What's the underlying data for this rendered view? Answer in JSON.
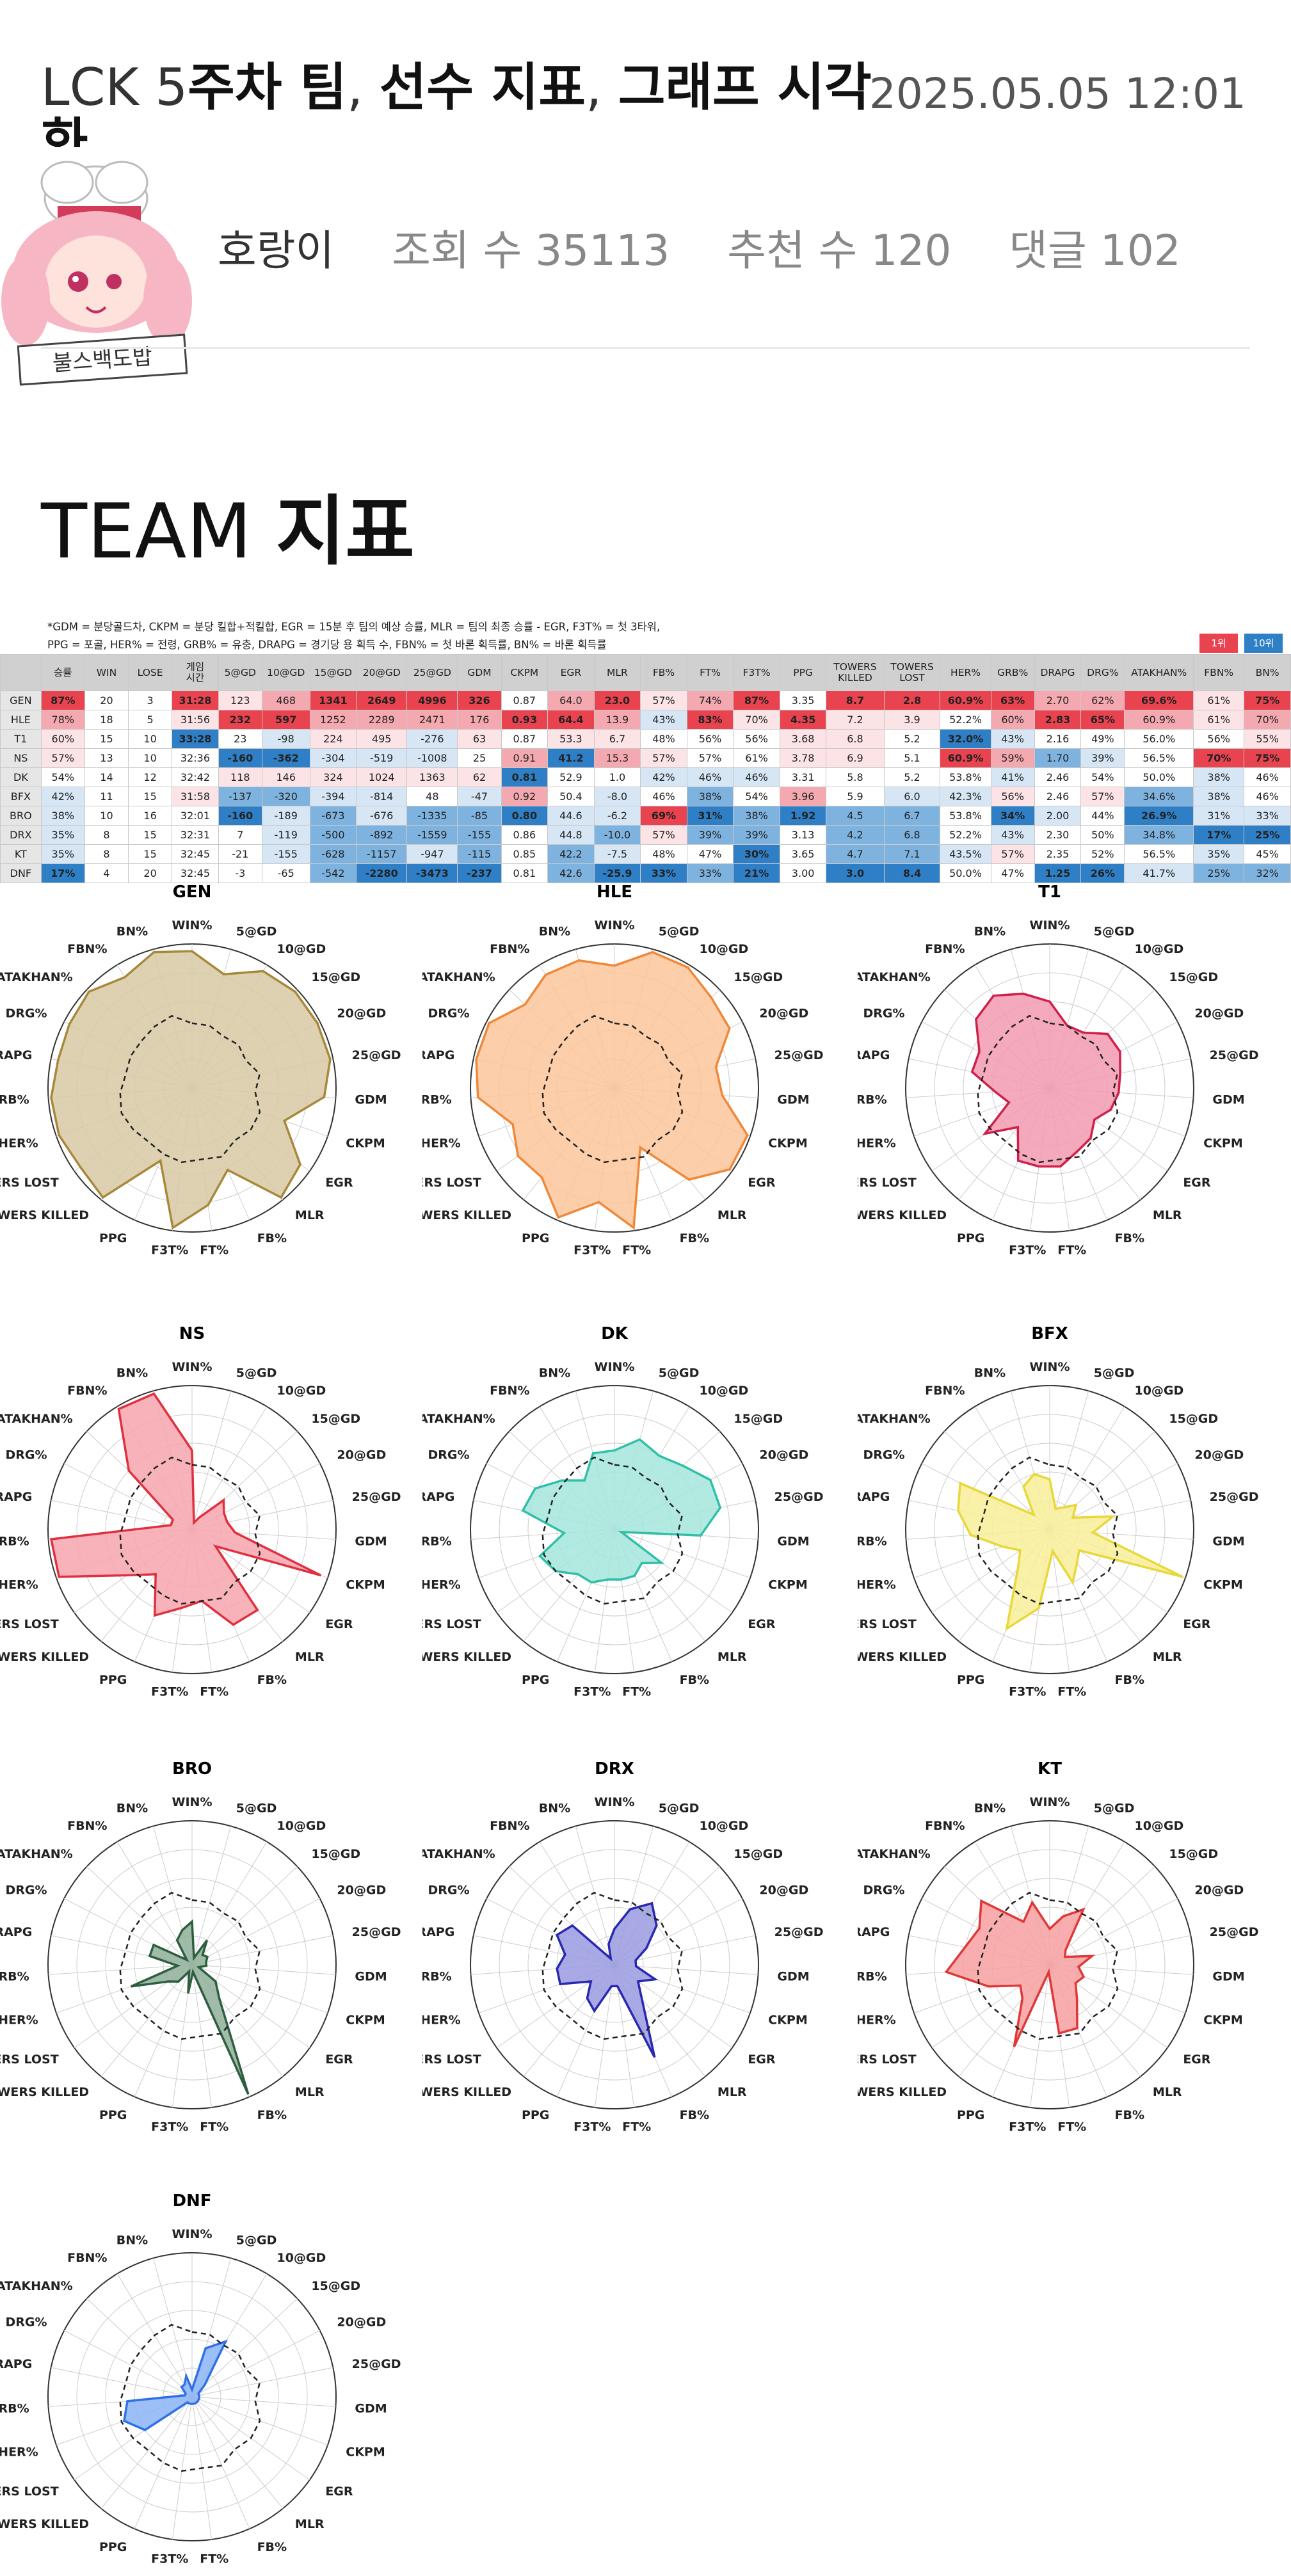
{
  "header": {
    "title_prefix": "LCK 5",
    "title_bold_1": "주차 팀",
    "title_sep_1": ", ",
    "title_bold_2": "선수 지표",
    "title_sep_2": ", ",
    "title_bold_3": "그래프 시각",
    "title_line2": "화",
    "date": "2025.05.05 12:01",
    "author": "호랑이",
    "views": "조회 수 35113",
    "recommends": "추천 수 120",
    "comments": "댓글 102",
    "avatar_caption": "불스백도밥"
  },
  "section": {
    "title_light": "TEAM ",
    "title_bold": "지표"
  },
  "notes": {
    "line1": "*GDM = 분당골드차, CKPM = 분당 킬합+적킬합, EGR = 15분 후 팀의 예상 승률, MLR = 팀의 최종 승률 - EGR, F3T% = 첫 3타워,",
    "line2": "PPG = 포골, HER% = 전령, GRB% = 유충, DRAPG = 경기당 용 획득 수, FBN% = 첫 바론 획득률, BN% = 바론 획득률",
    "rank1": "1위",
    "rank10": "10위"
  },
  "colors": {
    "top": "#e8434f",
    "high": "#f4a8b0",
    "mid": "#fbe3e6",
    "neutral": "#ffffff",
    "lowmid": "#d6e6f5",
    "low": "#7fb3df",
    "bottom": "#2f7fc7"
  },
  "table": {
    "columns": [
      "",
      "승률",
      "WIN",
      "LOSE",
      "게임\n시간",
      "5@GD",
      "10@GD",
      "15@GD",
      "20@GD",
      "25@GD",
      "GDM",
      "CKPM",
      "EGR",
      "MLR",
      "FB%",
      "FT%",
      "F3T%",
      "PPG",
      "TOWERS\nKILLED",
      "TOWERS\nLOST",
      "HER%",
      "GRB%",
      "DRAPG",
      "DRG%",
      "ATAKHAN%",
      "FBN%",
      "BN%"
    ],
    "rows": [
      {
        "team": "GEN",
        "cells": [
          "87%",
          "20",
          "3",
          "31:28",
          "123",
          "468",
          "1341",
          "2649",
          "4996",
          "326",
          "0.87",
          "64.0",
          "23.0",
          "57%",
          "74%",
          "87%",
          "3.35",
          "8.7",
          "2.8",
          "60.9%",
          "63%",
          "2.70",
          "62%",
          "69.6%",
          "61%",
          "75%"
        ],
        "shade": [
          "top",
          "",
          "",
          "top",
          "mid",
          "high",
          "top",
          "top",
          "top",
          "top",
          "",
          "high",
          "top",
          "mid",
          "high",
          "top",
          "",
          "top",
          "top",
          "top",
          "top",
          "high",
          "high",
          "top",
          "mid",
          "top"
        ]
      },
      {
        "team": "HLE",
        "cells": [
          "78%",
          "18",
          "5",
          "31:56",
          "232",
          "597",
          "1252",
          "2289",
          "2471",
          "176",
          "0.93",
          "64.4",
          "13.9",
          "43%",
          "83%",
          "70%",
          "4.35",
          "7.2",
          "3.9",
          "52.2%",
          "60%",
          "2.83",
          "65%",
          "60.9%",
          "61%",
          "70%"
        ],
        "shade": [
          "high",
          "",
          "",
          "mid",
          "top",
          "top",
          "high",
          "high",
          "high",
          "high",
          "top",
          "top",
          "high",
          "lowmid",
          "top",
          "mid",
          "top",
          "mid",
          "mid",
          "",
          "high",
          "top",
          "top",
          "high",
          "mid",
          "high"
        ]
      },
      {
        "team": "T1",
        "cells": [
          "60%",
          "15",
          "10",
          "33:28",
          "23",
          "-98",
          "224",
          "495",
          "-276",
          "63",
          "0.87",
          "53.3",
          "6.7",
          "48%",
          "56%",
          "56%",
          "3.68",
          "6.8",
          "5.2",
          "32.0%",
          "43%",
          "2.16",
          "49%",
          "56.0%",
          "56%",
          "55%"
        ],
        "shade": [
          "mid",
          "",
          "",
          "bottom",
          "",
          "lowmid",
          "mid",
          "mid",
          "lowmid",
          "mid",
          "",
          "mid",
          "mid",
          "",
          "",
          "",
          "mid",
          "mid",
          "",
          "bottom",
          "lowmid",
          "",
          "",
          "",
          "",
          "mid"
        ]
      },
      {
        "team": "NS",
        "cells": [
          "57%",
          "13",
          "10",
          "32:36",
          "-160",
          "-362",
          "-304",
          "-519",
          "-1008",
          "25",
          "0.91",
          "41.2",
          "15.3",
          "57%",
          "57%",
          "61%",
          "3.78",
          "6.9",
          "5.1",
          "60.9%",
          "59%",
          "1.70",
          "39%",
          "56.5%",
          "70%",
          "75%"
        ],
        "shade": [
          "mid",
          "",
          "",
          "",
          "bottom",
          "bottom",
          "lowmid",
          "lowmid",
          "lowmid",
          "",
          "high",
          "bottom",
          "high",
          "mid",
          "",
          "",
          "mid",
          "mid",
          "",
          "top",
          "high",
          "low",
          "lowmid",
          "",
          "top",
          "top"
        ]
      },
      {
        "team": "DK",
        "cells": [
          "54%",
          "14",
          "12",
          "32:42",
          "118",
          "146",
          "324",
          "1024",
          "1363",
          "62",
          "0.81",
          "52.9",
          "1.0",
          "42%",
          "46%",
          "46%",
          "3.31",
          "5.8",
          "5.2",
          "53.8%",
          "41%",
          "2.46",
          "54%",
          "50.0%",
          "38%",
          "46%"
        ],
        "shade": [
          "",
          "",
          "",
          "",
          "mid",
          "mid",
          "mid",
          "mid",
          "mid",
          "mid",
          "bottom",
          "",
          "",
          "lowmid",
          "lowmid",
          "lowmid",
          "",
          "",
          "",
          "",
          "lowmid",
          "",
          "",
          "",
          "lowmid",
          ""
        ]
      },
      {
        "team": "BFX",
        "cells": [
          "42%",
          "11",
          "15",
          "31:58",
          "-137",
          "-320",
          "-394",
          "-814",
          "48",
          "-47",
          "0.92",
          "50.4",
          "-8.0",
          "46%",
          "38%",
          "54%",
          "3.96",
          "5.9",
          "6.0",
          "42.3%",
          "56%",
          "2.46",
          "57%",
          "34.6%",
          "38%",
          "46%"
        ],
        "shade": [
          "lowmid",
          "",
          "",
          "mid",
          "low",
          "low",
          "lowmid",
          "lowmid",
          "",
          "lowmid",
          "high",
          "",
          "lowmid",
          "",
          "low",
          "",
          "high",
          "",
          "lowmid",
          "lowmid",
          "mid",
          "",
          "mid",
          "low",
          "lowmid",
          ""
        ]
      },
      {
        "team": "BRO",
        "cells": [
          "38%",
          "10",
          "16",
          "32:01",
          "-160",
          "-189",
          "-673",
          "-676",
          "-1335",
          "-85",
          "0.80",
          "44.6",
          "-6.2",
          "69%",
          "31%",
          "38%",
          "1.92",
          "4.5",
          "6.7",
          "53.8%",
          "34%",
          "2.00",
          "44%",
          "26.9%",
          "31%",
          "33%"
        ],
        "shade": [
          "lowmid",
          "",
          "",
          "",
          "bottom",
          "lowmid",
          "low",
          "lowmid",
          "low",
          "low",
          "bottom",
          "lowmid",
          "lowmid",
          "top",
          "bottom",
          "low",
          "bottom",
          "low",
          "low",
          "",
          "bottom",
          "lowmid",
          "",
          "bottom",
          "lowmid",
          "lowmid"
        ]
      },
      {
        "team": "DRX",
        "cells": [
          "35%",
          "8",
          "15",
          "32:31",
          "7",
          "-119",
          "-500",
          "-892",
          "-1559",
          "-155",
          "0.86",
          "44.8",
          "-10.0",
          "57%",
          "39%",
          "39%",
          "3.13",
          "4.2",
          "6.8",
          "52.2%",
          "43%",
          "2.30",
          "50%",
          "34.8%",
          "17%",
          "25%"
        ],
        "shade": [
          "lowmid",
          "",
          "",
          "",
          "",
          "lowmid",
          "low",
          "low",
          "low",
          "low",
          "",
          "lowmid",
          "low",
          "mid",
          "low",
          "low",
          "",
          "low",
          "low",
          "",
          "lowmid",
          "",
          "",
          "low",
          "bottom",
          "bottom"
        ]
      },
      {
        "team": "KT",
        "cells": [
          "35%",
          "8",
          "15",
          "32:45",
          "-21",
          "-155",
          "-628",
          "-1157",
          "-947",
          "-115",
          "0.85",
          "42.2",
          "-7.5",
          "48%",
          "47%",
          "30%",
          "3.65",
          "4.7",
          "7.1",
          "43.5%",
          "57%",
          "2.35",
          "52%",
          "56.5%",
          "35%",
          "45%"
        ],
        "shade": [
          "lowmid",
          "",
          "",
          "",
          "",
          "lowmid",
          "low",
          "low",
          "lowmid",
          "low",
          "",
          "low",
          "lowmid",
          "",
          "",
          "bottom",
          "",
          "low",
          "low",
          "lowmid",
          "mid",
          "",
          "",
          "",
          "lowmid",
          ""
        ]
      },
      {
        "team": "DNF",
        "cells": [
          "17%",
          "4",
          "20",
          "32:45",
          "-3",
          "-65",
          "-542",
          "-2280",
          "-3473",
          "-237",
          "0.81",
          "42.6",
          "-25.9",
          "33%",
          "33%",
          "21%",
          "3.00",
          "3.0",
          "8.4",
          "50.0%",
          "47%",
          "1.25",
          "26%",
          "41.7%",
          "25%",
          "32%"
        ],
        "shade": [
          "bottom",
          "",
          "",
          "",
          "",
          "",
          "low",
          "bottom",
          "bottom",
          "bottom",
          "",
          "low",
          "bottom",
          "bottom",
          "low",
          "bottom",
          "",
          "bottom",
          "bottom",
          "",
          "",
          "bottom",
          "bottom",
          "lowmid",
          "low",
          "low"
        ]
      }
    ]
  },
  "radar": {
    "axes": [
      "WIN%",
      "5@GD",
      "10@GD",
      "15@GD",
      "20@GD",
      "25@GD",
      "GDM",
      "CKPM",
      "EGR",
      "MLR",
      "FB%",
      "FT%",
      "F3T%",
      "PPG",
      "TOWERS KILLED",
      "TOWERS LOST",
      "HER%",
      "GRB%",
      "DRAPG",
      "DRG%",
      "ATAKHAN%",
      "FBN%",
      "BN%"
    ],
    "avg": [
      0.45,
      0.45,
      0.42,
      0.44,
      0.42,
      0.48,
      0.44,
      0.5,
      0.5,
      0.47,
      0.52,
      0.5,
      0.52,
      0.5,
      0.48,
      0.5,
      0.52,
      0.5,
      0.47,
      0.48,
      0.48,
      0.5,
      0.52
    ],
    "teams": [
      {
        "name": "GEN",
        "stroke": "#a8883a",
        "fill": "#d8c9a3",
        "values": [
          0.95,
          0.82,
          0.95,
          0.98,
          0.98,
          0.98,
          0.92,
          0.68,
          0.92,
          0.98,
          0.62,
          0.82,
          0.98,
          0.55,
          0.98,
          0.95,
          0.98,
          0.98,
          0.95,
          0.96,
          0.98,
          0.9,
          0.98
        ]
      },
      {
        "name": "HLE",
        "stroke": "#f0883a",
        "fill": "#fbc59a",
        "values": [
          0.85,
          0.98,
          0.98,
          0.92,
          0.9,
          0.72,
          0.75,
          0.98,
          0.98,
          0.82,
          0.45,
          0.98,
          0.8,
          0.98,
          0.8,
          0.82,
          0.75,
          0.95,
          0.98,
          0.98,
          0.85,
          0.92,
          0.92
        ]
      },
      {
        "name": "T1",
        "stroke": "#d0204a",
        "fill": "#f29ab0",
        "values": [
          0.6,
          0.45,
          0.45,
          0.55,
          0.55,
          0.5,
          0.48,
          0.45,
          0.38,
          0.45,
          0.48,
          0.55,
          0.55,
          0.55,
          0.35,
          0.55,
          0.3,
          0.38,
          0.55,
          0.55,
          0.7,
          0.75,
          0.68
        ]
      },
      {
        "name": "NS",
        "stroke": "#e03040",
        "fill": "#f7a6ae",
        "values": [
          0.55,
          0.05,
          0.1,
          0.3,
          0.25,
          0.25,
          0.3,
          0.95,
          0.2,
          0.72,
          0.72,
          0.5,
          0.55,
          0.65,
          0.4,
          0.55,
          0.98,
          0.98,
          0.15,
          0.15,
          0.6,
          0.98,
          0.98
        ]
      },
      {
        "name": "DK",
        "stroke": "#30c0a8",
        "fill": "#a5e6dc",
        "values": [
          0.55,
          0.65,
          0.6,
          0.65,
          0.75,
          0.75,
          0.6,
          0.05,
          0.4,
          0.3,
          0.35,
          0.35,
          0.35,
          0.4,
          0.4,
          0.5,
          0.55,
          0.35,
          0.65,
          0.62,
          0.5,
          0.4,
          0.55
        ]
      },
      {
        "name": "BFX",
        "stroke": "#e8d83a",
        "fill": "#f8ee98",
        "values": [
          0.35,
          0.15,
          0.18,
          0.25,
          0.18,
          0.45,
          0.3,
          0.98,
          0.25,
          0.3,
          0.4,
          0.15,
          0.55,
          0.75,
          0.35,
          0.25,
          0.35,
          0.55,
          0.65,
          0.7,
          0.15,
          0.35,
          0.4
        ]
      },
      {
        "name": "BRO",
        "stroke": "#2e5e40",
        "fill": "#8fb09a",
        "values": [
          0.3,
          0.05,
          0.2,
          0.1,
          0.12,
          0.1,
          0.1,
          0.05,
          0.2,
          0.3,
          0.98,
          0.05,
          0.2,
          0.05,
          0.15,
          0.2,
          0.45,
          0.1,
          0.3,
          0.3,
          0.05,
          0.2,
          0.25
        ]
      },
      {
        "name": "DRX",
        "stroke": "#2828b0",
        "fill": "#9a9ae0",
        "values": [
          0.25,
          0.4,
          0.5,
          0.4,
          0.25,
          0.15,
          0.15,
          0.3,
          0.2,
          0.3,
          0.7,
          0.15,
          0.15,
          0.35,
          0.3,
          0.2,
          0.4,
          0.4,
          0.35,
          0.45,
          0.4,
          0.05,
          0.15
        ]
      },
      {
        "name": "KT",
        "stroke": "#e03838",
        "fill": "#f7a0a0",
        "values": [
          0.25,
          0.35,
          0.45,
          0.15,
          0.12,
          0.3,
          0.2,
          0.25,
          0.22,
          0.3,
          0.48,
          0.48,
          0.05,
          0.62,
          0.3,
          0.25,
          0.45,
          0.72,
          0.6,
          0.55,
          0.65,
          0.35,
          0.45
        ]
      },
      {
        "name": "DNF",
        "stroke": "#3070e8",
        "fill": "#8ab4f5",
        "values": [
          0.05,
          0.35,
          0.45,
          0.12,
          0.05,
          0.05,
          0.05,
          0.05,
          0.05,
          0.05,
          0.05,
          0.05,
          0.05,
          0.05,
          0.05,
          0.4,
          0.5,
          0.45,
          0.05,
          0.05,
          0.1,
          0.1,
          0.15
        ]
      }
    ]
  }
}
